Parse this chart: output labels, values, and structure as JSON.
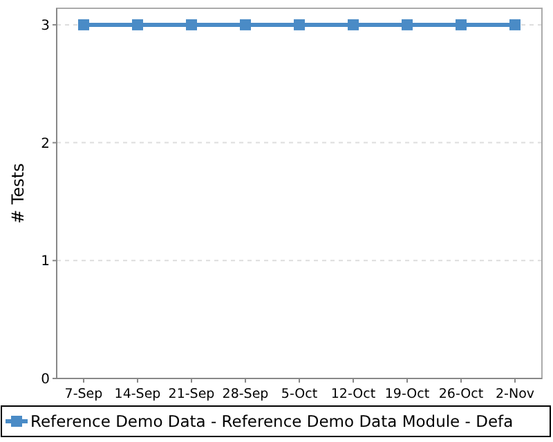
{
  "chart_data": {
    "type": "line",
    "ylabel": "# Tests",
    "categories": [
      "7-Sep",
      "14-Sep",
      "21-Sep",
      "28-Sep",
      "5-Oct",
      "12-Oct",
      "19-Oct",
      "26-Oct",
      "2-Nov"
    ],
    "series": [
      {
        "name": "Reference Demo Data - Reference Demo Data Module - Defa",
        "color": "#4a8bc6",
        "values": [
          3,
          3,
          3,
          3,
          3,
          3,
          3,
          3,
          3
        ]
      }
    ],
    "ylim": [
      0,
      3.14
    ],
    "yticks": [
      0,
      1,
      2,
      3
    ],
    "grid": "y",
    "legend": "bottom",
    "marker": "square",
    "line_style": "solid"
  }
}
